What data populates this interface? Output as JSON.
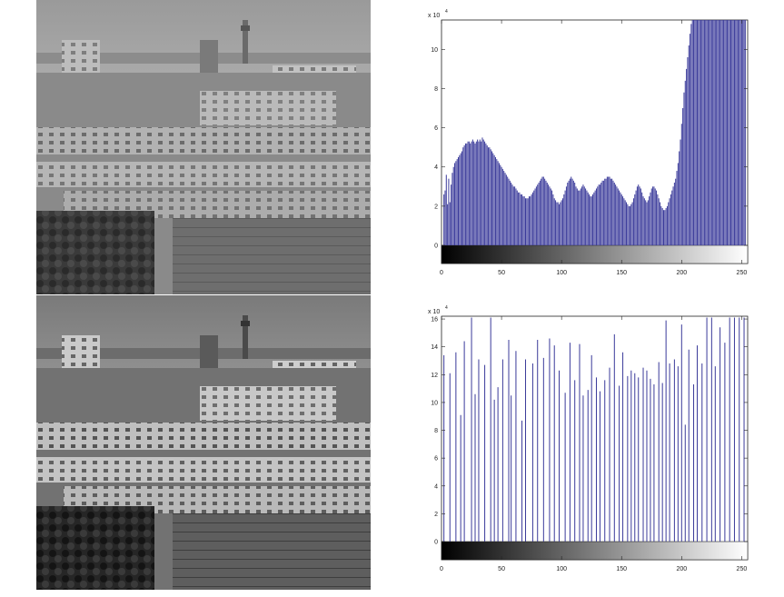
{
  "chart_data": [
    {
      "type": "bar",
      "panel": "histogram-original",
      "title": "",
      "exponent_label": "x 10",
      "exponent_power": "4",
      "xlim": [
        0,
        255
      ],
      "ylim": [
        0,
        11.5
      ],
      "x_ticks": [
        0,
        50,
        100,
        150,
        200,
        250
      ],
      "y_ticks": [
        0,
        2,
        4,
        6,
        8,
        10
      ],
      "colorbar": "grayscale",
      "bar_color": "#3a3a9a",
      "bins": [
        [
          2,
          2.6
        ],
        [
          3,
          2.8
        ],
        [
          4,
          3.6
        ],
        [
          5,
          2.1
        ],
        [
          6,
          3.4
        ],
        [
          7,
          2.2
        ],
        [
          8,
          3.1
        ],
        [
          9,
          3.7
        ],
        [
          10,
          4.0
        ],
        [
          11,
          4.2
        ],
        [
          12,
          4.3
        ],
        [
          13,
          4.4
        ],
        [
          14,
          4.5
        ],
        [
          15,
          4.6
        ],
        [
          16,
          4.7
        ],
        [
          17,
          4.8
        ],
        [
          18,
          5.0
        ],
        [
          19,
          5.1
        ],
        [
          20,
          5.2
        ],
        [
          21,
          5.2
        ],
        [
          22,
          5.3
        ],
        [
          23,
          5.3
        ],
        [
          24,
          5.2
        ],
        [
          25,
          5.3
        ],
        [
          26,
          5.4
        ],
        [
          27,
          5.3
        ],
        [
          28,
          5.2
        ],
        [
          29,
          5.3
        ],
        [
          30,
          5.4
        ],
        [
          31,
          5.3
        ],
        [
          32,
          5.4
        ],
        [
          33,
          5.3
        ],
        [
          34,
          5.5
        ],
        [
          35,
          5.4
        ],
        [
          36,
          5.3
        ],
        [
          37,
          5.2
        ],
        [
          38,
          5.1
        ],
        [
          39,
          5.0
        ],
        [
          40,
          5.0
        ],
        [
          41,
          4.9
        ],
        [
          42,
          4.8
        ],
        [
          43,
          4.7
        ],
        [
          44,
          4.6
        ],
        [
          45,
          4.5
        ],
        [
          46,
          4.4
        ],
        [
          47,
          4.3
        ],
        [
          48,
          4.2
        ],
        [
          49,
          4.1
        ],
        [
          50,
          4.0
        ],
        [
          51,
          3.9
        ],
        [
          52,
          3.8
        ],
        [
          53,
          3.7
        ],
        [
          54,
          3.6
        ],
        [
          55,
          3.5
        ],
        [
          56,
          3.4
        ],
        [
          57,
          3.3
        ],
        [
          58,
          3.2
        ],
        [
          59,
          3.1
        ],
        [
          60,
          3.0
        ],
        [
          61,
          3.0
        ],
        [
          62,
          2.9
        ],
        [
          63,
          2.8
        ],
        [
          64,
          2.7
        ],
        [
          65,
          2.7
        ],
        [
          66,
          2.6
        ],
        [
          67,
          2.6
        ],
        [
          68,
          2.5
        ],
        [
          69,
          2.5
        ],
        [
          70,
          2.4
        ],
        [
          71,
          2.4
        ],
        [
          72,
          2.4
        ],
        [
          73,
          2.5
        ],
        [
          74,
          2.5
        ],
        [
          75,
          2.6
        ],
        [
          76,
          2.7
        ],
        [
          77,
          2.8
        ],
        [
          78,
          2.9
        ],
        [
          79,
          3.0
        ],
        [
          80,
          3.1
        ],
        [
          81,
          3.2
        ],
        [
          82,
          3.3
        ],
        [
          83,
          3.4
        ],
        [
          84,
          3.5
        ],
        [
          85,
          3.5
        ],
        [
          86,
          3.4
        ],
        [
          87,
          3.3
        ],
        [
          88,
          3.2
        ],
        [
          89,
          3.1
        ],
        [
          90,
          3.0
        ],
        [
          91,
          2.9
        ],
        [
          92,
          2.8
        ],
        [
          93,
          2.6
        ],
        [
          94,
          2.4
        ],
        [
          95,
          2.3
        ],
        [
          96,
          2.2
        ],
        [
          97,
          2.2
        ],
        [
          98,
          2.1
        ],
        [
          99,
          2.2
        ],
        [
          100,
          2.3
        ],
        [
          101,
          2.4
        ],
        [
          102,
          2.6
        ],
        [
          103,
          2.8
        ],
        [
          104,
          3.0
        ],
        [
          105,
          3.2
        ],
        [
          106,
          3.3
        ],
        [
          107,
          3.4
        ],
        [
          108,
          3.5
        ],
        [
          109,
          3.4
        ],
        [
          110,
          3.3
        ],
        [
          111,
          3.2
        ],
        [
          112,
          3.0
        ],
        [
          113,
          2.9
        ],
        [
          114,
          2.8
        ],
        [
          115,
          2.8
        ],
        [
          116,
          2.9
        ],
        [
          117,
          3.0
        ],
        [
          118,
          3.1
        ],
        [
          119,
          3.0
        ],
        [
          120,
          2.9
        ],
        [
          121,
          2.8
        ],
        [
          122,
          2.7
        ],
        [
          123,
          2.6
        ],
        [
          124,
          2.5
        ],
        [
          125,
          2.5
        ],
        [
          126,
          2.6
        ],
        [
          127,
          2.7
        ],
        [
          128,
          2.8
        ],
        [
          129,
          2.9
        ],
        [
          130,
          3.0
        ],
        [
          131,
          3.1
        ],
        [
          132,
          3.1
        ],
        [
          133,
          3.2
        ],
        [
          134,
          3.3
        ],
        [
          135,
          3.3
        ],
        [
          136,
          3.4
        ],
        [
          137,
          3.4
        ],
        [
          138,
          3.5
        ],
        [
          139,
          3.5
        ],
        [
          140,
          3.5
        ],
        [
          141,
          3.4
        ],
        [
          142,
          3.4
        ],
        [
          143,
          3.3
        ],
        [
          144,
          3.2
        ],
        [
          145,
          3.1
        ],
        [
          146,
          3.0
        ],
        [
          147,
          2.9
        ],
        [
          148,
          2.8
        ],
        [
          149,
          2.7
        ],
        [
          150,
          2.6
        ],
        [
          151,
          2.5
        ],
        [
          152,
          2.4
        ],
        [
          153,
          2.3
        ],
        [
          154,
          2.2
        ],
        [
          155,
          2.1
        ],
        [
          156,
          2.0
        ],
        [
          157,
          2.0
        ],
        [
          158,
          2.1
        ],
        [
          159,
          2.2
        ],
        [
          160,
          2.4
        ],
        [
          161,
          2.6
        ],
        [
          162,
          2.8
        ],
        [
          163,
          3.0
        ],
        [
          164,
          3.1
        ],
        [
          165,
          3.0
        ],
        [
          166,
          2.9
        ],
        [
          167,
          2.7
        ],
        [
          168,
          2.5
        ],
        [
          169,
          2.4
        ],
        [
          170,
          2.3
        ],
        [
          171,
          2.2
        ],
        [
          172,
          2.3
        ],
        [
          173,
          2.5
        ],
        [
          174,
          2.7
        ],
        [
          175,
          2.9
        ],
        [
          176,
          3.0
        ],
        [
          177,
          3.0
        ],
        [
          178,
          2.9
        ],
        [
          179,
          2.8
        ],
        [
          180,
          2.6
        ],
        [
          181,
          2.4
        ],
        [
          182,
          2.2
        ],
        [
          183,
          2.0
        ],
        [
          184,
          1.9
        ],
        [
          185,
          1.8
        ],
        [
          186,
          1.8
        ],
        [
          187,
          1.9
        ],
        [
          188,
          2.0
        ],
        [
          189,
          2.2
        ],
        [
          190,
          2.4
        ],
        [
          191,
          2.6
        ],
        [
          192,
          2.8
        ],
        [
          193,
          3.0
        ],
        [
          194,
          3.2
        ],
        [
          195,
          3.4
        ],
        [
          196,
          3.8
        ],
        [
          197,
          4.2
        ],
        [
          198,
          4.8
        ],
        [
          199,
          5.4
        ],
        [
          200,
          6.2
        ],
        [
          201,
          7.0
        ],
        [
          202,
          7.8
        ],
        [
          203,
          8.4
        ],
        [
          204,
          9.0
        ],
        [
          205,
          9.6
        ],
        [
          206,
          10.2
        ],
        [
          207,
          10.8
        ],
        [
          208,
          11.3
        ],
        [
          209,
          11.5
        ],
        [
          210,
          11.5
        ],
        [
          211,
          11.5
        ],
        [
          212,
          11.5
        ],
        [
          213,
          11.5
        ],
        [
          214,
          11.5
        ],
        [
          215,
          11.5
        ],
        [
          216,
          11.5
        ],
        [
          217,
          11.5
        ],
        [
          218,
          11.5
        ],
        [
          219,
          11.5
        ],
        [
          220,
          11.5
        ],
        [
          221,
          11.5
        ],
        [
          222,
          11.5
        ],
        [
          223,
          11.5
        ],
        [
          224,
          11.5
        ],
        [
          225,
          11.5
        ],
        [
          226,
          11.5
        ],
        [
          227,
          11.5
        ],
        [
          228,
          11.5
        ],
        [
          229,
          11.5
        ],
        [
          230,
          11.5
        ],
        [
          231,
          11.5
        ],
        [
          232,
          11.5
        ],
        [
          233,
          11.5
        ],
        [
          234,
          11.5
        ],
        [
          235,
          11.5
        ],
        [
          236,
          11.5
        ],
        [
          237,
          11.5
        ],
        [
          238,
          11.5
        ],
        [
          239,
          11.5
        ],
        [
          240,
          11.5
        ],
        [
          241,
          11.5
        ],
        [
          242,
          11.5
        ],
        [
          243,
          11.5
        ],
        [
          244,
          11.5
        ],
        [
          245,
          11.5
        ],
        [
          246,
          11.5
        ],
        [
          247,
          11.5
        ],
        [
          248,
          11.5
        ],
        [
          249,
          11.5
        ],
        [
          250,
          11.5
        ],
        [
          251,
          11.5
        ],
        [
          252,
          11.5
        ],
        [
          253,
          11.5
        ]
      ]
    },
    {
      "type": "bar",
      "panel": "histogram-equalized",
      "title": "",
      "exponent_label": "x 10",
      "exponent_power": "4",
      "xlim": [
        0,
        255
      ],
      "ylim": [
        0,
        16.2
      ],
      "x_ticks": [
        0,
        50,
        100,
        150,
        200,
        250
      ],
      "y_ticks": [
        0,
        2,
        4,
        6,
        8,
        10,
        12,
        14,
        16
      ],
      "colorbar": "grayscale",
      "bar_color": "#3a3a9a",
      "bins": [
        [
          2,
          13.4
        ],
        [
          7,
          12.1
        ],
        [
          12,
          13.6
        ],
        [
          16,
          9.1
        ],
        [
          19,
          14.4
        ],
        [
          25,
          16.1
        ],
        [
          28,
          10.6
        ],
        [
          31,
          13.1
        ],
        [
          36,
          12.7
        ],
        [
          41,
          16.1
        ],
        [
          44,
          10.2
        ],
        [
          47,
          11.1
        ],
        [
          51,
          13.1
        ],
        [
          56,
          14.5
        ],
        [
          58,
          10.5
        ],
        [
          62,
          13.7
        ],
        [
          67,
          8.7
        ],
        [
          70,
          13.1
        ],
        [
          76,
          12.8
        ],
        [
          80,
          14.5
        ],
        [
          85,
          13.2
        ],
        [
          90,
          14.6
        ],
        [
          94,
          14.1
        ],
        [
          98,
          12.3
        ],
        [
          103,
          10.7
        ],
        [
          107,
          14.3
        ],
        [
          111,
          11.6
        ],
        [
          115,
          14.2
        ],
        [
          118,
          10.5
        ],
        [
          122,
          10.9
        ],
        [
          125,
          13.4
        ],
        [
          129,
          11.8
        ],
        [
          132,
          10.8
        ],
        [
          136,
          11.6
        ],
        [
          140,
          12.5
        ],
        [
          144,
          14.9
        ],
        [
          148,
          11.2
        ],
        [
          151,
          13.6
        ],
        [
          155,
          11.9
        ],
        [
          158,
          12.3
        ],
        [
          161,
          12.1
        ],
        [
          164,
          11.8
        ],
        [
          168,
          12.5
        ],
        [
          171,
          12.3
        ],
        [
          174,
          11.7
        ],
        [
          177,
          11.3
        ],
        [
          181,
          12.9
        ],
        [
          184,
          11.4
        ],
        [
          187,
          15.9
        ],
        [
          190,
          12.8
        ],
        [
          194,
          13.1
        ],
        [
          197,
          12.6
        ],
        [
          200,
          15.6
        ],
        [
          203,
          8.4
        ],
        [
          206,
          13.8
        ],
        [
          210,
          11.3
        ],
        [
          213,
          14.1
        ],
        [
          217,
          12.8
        ],
        [
          221,
          16.1
        ],
        [
          225,
          16.1
        ],
        [
          228,
          12.6
        ],
        [
          232,
          15.4
        ],
        [
          236,
          14.3
        ],
        [
          240,
          16.1
        ],
        [
          244,
          16.1
        ],
        [
          248,
          16.1
        ],
        [
          252,
          16.1
        ]
      ]
    }
  ]
}
